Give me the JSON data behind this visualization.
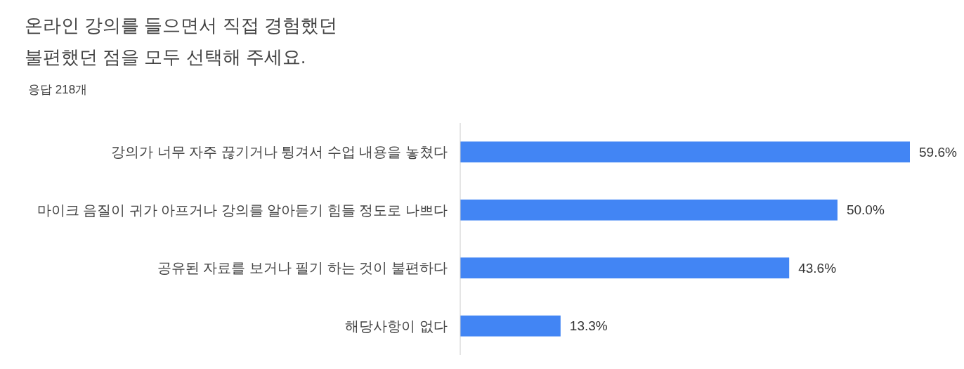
{
  "chart_data": {
    "type": "bar",
    "orientation": "horizontal",
    "title": "온라인 강의를 들으면서 직접 경험했던 불편했던 점을 모두 선택해 주세요.",
    "subtitle": "응답 218개",
    "categories": [
      "강의가 너무 자주 끊기거나 튕겨서 수업 내용을 놓쳤다",
      "마이크 음질이 귀가 아프거나 강의를 알아듣기 힘들 정도로 나쁘다",
      "공유된 자료를 보거나 필기 하는 것이 불편하다",
      "해당사항이 없다"
    ],
    "values": [
      59.6,
      50.0,
      43.6,
      13.3
    ],
    "value_labels": [
      "59.6%",
      "50.0%",
      "43.6%",
      "13.3%"
    ],
    "color": "#4285f4"
  }
}
